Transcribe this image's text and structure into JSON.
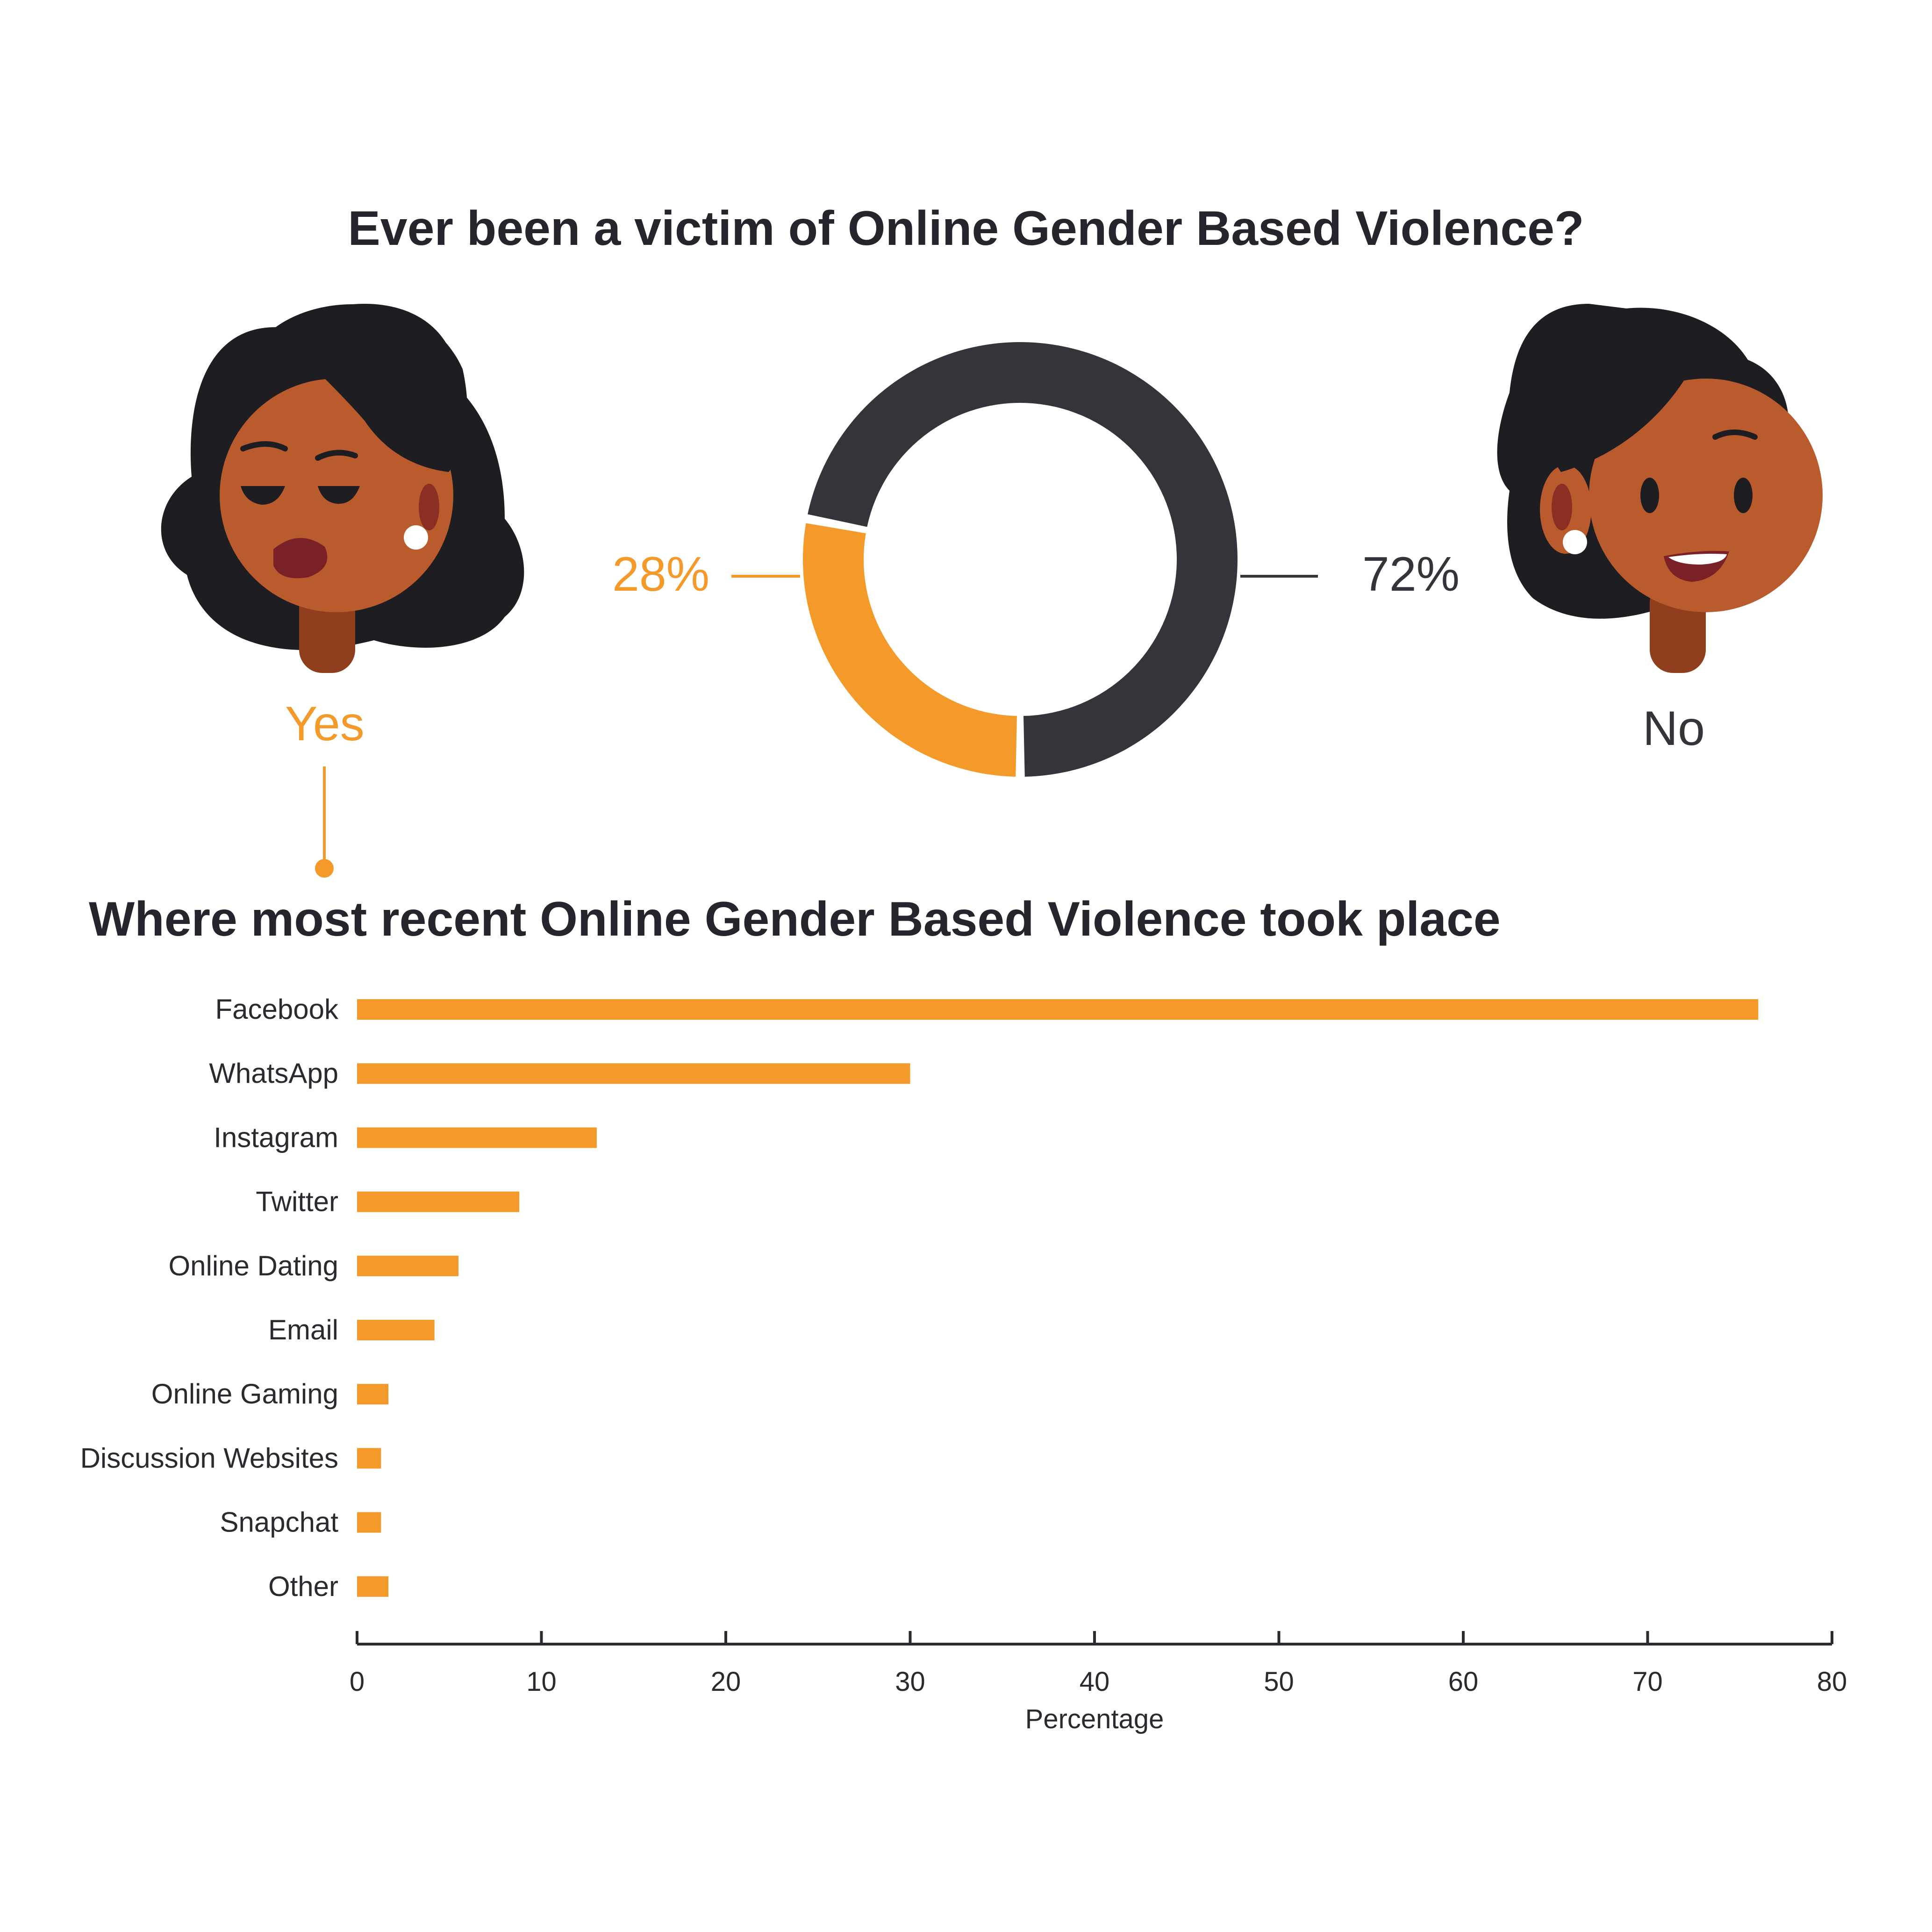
{
  "colors": {
    "yes": "#f39a2b",
    "no": "#34343b",
    "bar": "#f39a2b",
    "text": "#25252d"
  },
  "donut": {
    "title": "Ever been a victim of Online Gender Based Violence?",
    "yes_label": "Yes",
    "no_label": "No",
    "yes_value": "28%",
    "no_value": "72%"
  },
  "chart_data": [
    {
      "type": "pie",
      "title": "Ever been a victim of Online Gender Based Violence?",
      "categories": [
        "Yes",
        "No"
      ],
      "values": [
        28,
        72
      ]
    },
    {
      "type": "bar",
      "orientation": "horizontal",
      "title": "Where most recent Online Gender Based Violence took place",
      "categories": [
        "Facebook",
        "WhatsApp",
        "Instagram",
        "Twitter",
        "Online Dating",
        "Email",
        "Online Gaming",
        "Discussion Websites",
        "Snapchat",
        "Other"
      ],
      "values": [
        76,
        30,
        13,
        8.8,
        5.5,
        4.2,
        1.7,
        1.3,
        1.3,
        1.7
      ],
      "xlabel": "Percentage",
      "ylabel": "",
      "xlim": [
        0,
        80
      ],
      "xticks": [
        "0",
        "10",
        "20",
        "30",
        "40",
        "50",
        "60",
        "70",
        "80"
      ],
      "grid": false,
      "legend": "none"
    }
  ]
}
